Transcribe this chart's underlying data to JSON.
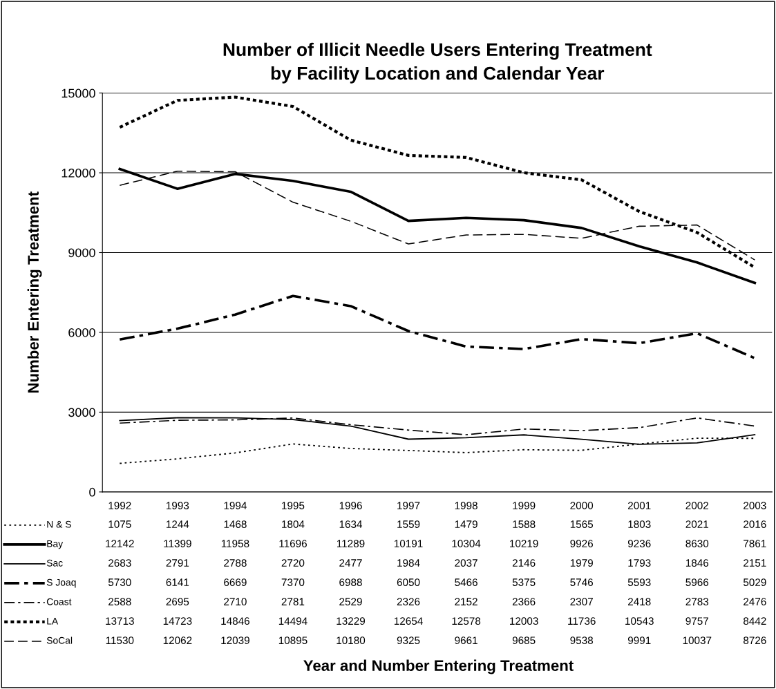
{
  "chart_data": {
    "type": "line",
    "title": "Number of Illicit Needle Users Entering Treatment\nby Facility Location and Calendar Year",
    "annotations": [
      "Year and Number Entering Treatment"
    ],
    "legend": "bottom left",
    "ylabel": "Number Entering Treatment",
    "categories": [
      "1992",
      "1993",
      "1994",
      "1995",
      "1996",
      "1997",
      "1998",
      "1999",
      "2000",
      "2001",
      "2002",
      "2003"
    ],
    "series": [
      {
        "name": "N & S",
        "color": "#000000",
        "line_style": "dotted",
        "values": [
          1075,
          1244,
          1468,
          1804,
          1634,
          1559,
          1479,
          1588,
          1565,
          1803,
          2021,
          2016
        ]
      },
      {
        "name": "Bay",
        "color": "#000000",
        "line_style": "solid",
        "values": [
          12142,
          11399,
          11958,
          11696,
          11289,
          10191,
          10304,
          10219,
          9926,
          9236,
          8630,
          7861
        ]
      },
      {
        "name": "Sac",
        "color": "#000000",
        "line_style": "solid",
        "values": [
          2683,
          2791,
          2788,
          2720,
          2477,
          1984,
          2037,
          2146,
          1979,
          1793,
          1846,
          2151
        ]
      },
      {
        "name": "S Joaq",
        "color": "#000000",
        "line_style": "dashdot",
        "values": [
          5730,
          6141,
          6669,
          7370,
          6988,
          6050,
          5466,
          5375,
          5746,
          5593,
          5966,
          5029
        ]
      },
      {
        "name": "Coast",
        "color": "#000000",
        "line_style": "dashdot",
        "values": [
          2588,
          2695,
          2710,
          2781,
          2529,
          2326,
          2152,
          2366,
          2307,
          2418,
          2783,
          2476
        ]
      },
      {
        "name": "LA",
        "color": "#000000",
        "line_style": "dotted",
        "values": [
          13713,
          14723,
          14846,
          14494,
          13229,
          12654,
          12578,
          12003,
          11736,
          10543,
          9757,
          8442
        ]
      },
      {
        "name": "SoCal",
        "color": "#000000",
        "line_style": "dashed",
        "values": [
          11530,
          12062,
          12039,
          10895,
          10180,
          9325,
          9661,
          9685,
          9538,
          9991,
          10037,
          8726
        ]
      }
    ],
    "ylim": [
      0,
      15000
    ],
    "yticks": [
      0,
      3000,
      6000,
      9000,
      12000,
      15000
    ],
    "grid": "y",
    "data_labels": true,
    "marker": "none"
  }
}
